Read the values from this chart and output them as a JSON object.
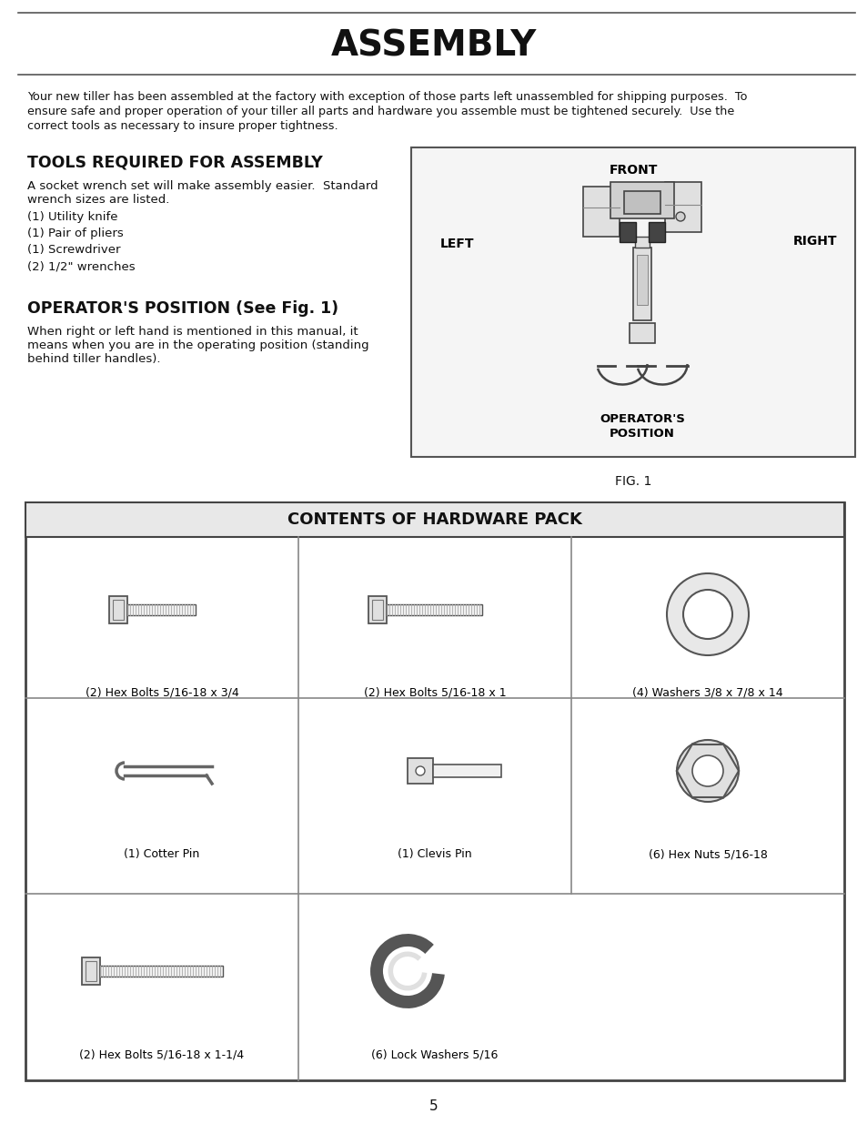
{
  "title": "ASSEMBLY",
  "bg_color": "#ffffff",
  "intro_text1": "Your new tiller has been assembled at the factory with exception of those parts left unassembled for shipping purposes.  To",
  "intro_text2": "ensure safe and proper operation of your tiller all parts and hardware you assemble must be tightened securely.  Use the",
  "intro_text3": "correct tools as necessary to insure proper tightness.",
  "section1_title": "TOOLS REQUIRED FOR ASSEMBLY",
  "section1_intro1": "A socket wrench set will make assembly easier.  Standard",
  "section1_intro2": "wrench sizes are listed.",
  "tools_list": [
    "(1) Utility knife",
    "(1) Pair of pliers",
    "(1) Screwdriver",
    "(2) 1/2\" wrenches"
  ],
  "section2_title": "OPERATOR'S POSITION (See Fig. 1)",
  "section2_text1": "When right or left hand is mentioned in this manual, it",
  "section2_text2": "means when you are in the operating position (standing",
  "section2_text3": "behind tiller handles).",
  "fig_label": "FIG. 1",
  "fig_front": "FRONT",
  "fig_left": "LEFT",
  "fig_right": "RIGHT",
  "fig_op_pos1": "OPERATOR'S",
  "fig_op_pos2": "POSITION",
  "hardware_title": "CONTENTS OF HARDWARE PACK",
  "hw_labels": [
    "(2) Hex Bolts 5/16-18 x 3/4",
    "(2) Hex Bolts 5/16-18 x 1",
    "(4) Washers 3/8 x 7/8 x 14",
    "(1) Cotter Pin",
    "(1) Clevis Pin",
    "(6) Hex Nuts 5/16-18",
    "(2) Hex Bolts 5/16-18 x 1-1/4",
    "(6) Lock Washers 5/16"
  ],
  "page_number": "5"
}
